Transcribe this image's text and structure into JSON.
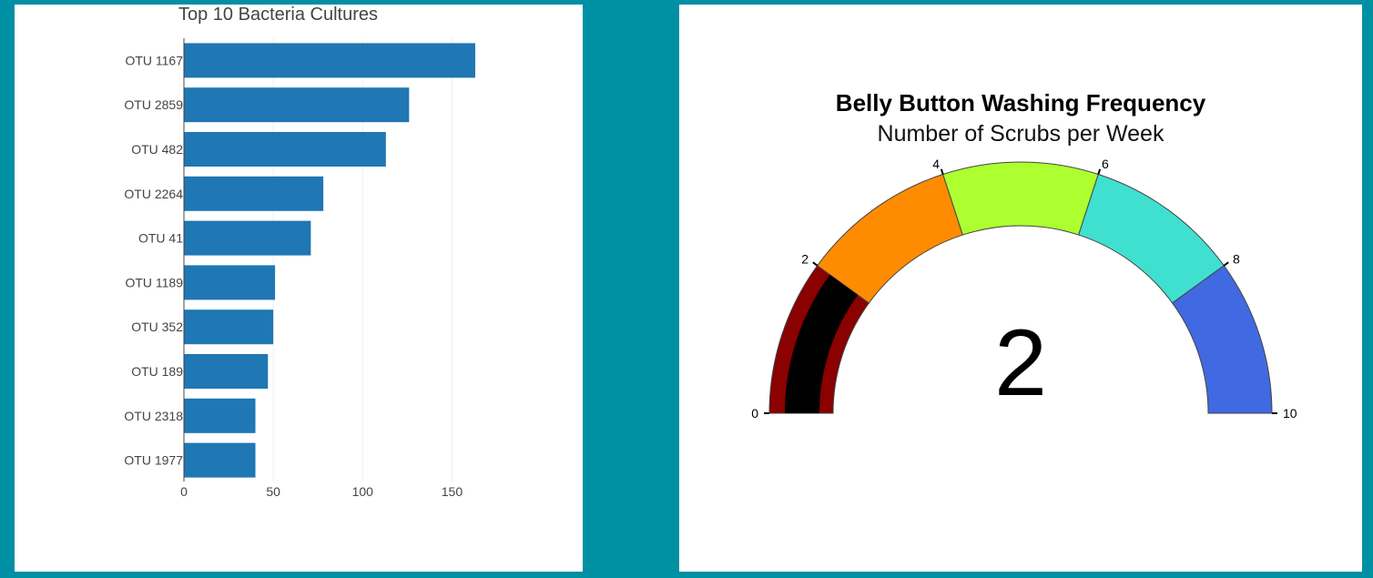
{
  "chart_data": [
    {
      "type": "bar",
      "orientation": "horizontal",
      "title": "Top 10 Bacteria Cultures",
      "categories": [
        "OTU 1167",
        "OTU 2859",
        "OTU 482",
        "OTU 2264",
        "OTU 41",
        "OTU 1189",
        "OTU 352",
        "OTU 189",
        "OTU 2318",
        "OTU 1977"
      ],
      "values": [
        163,
        126,
        113,
        78,
        71,
        51,
        50,
        47,
        40,
        40
      ],
      "xlim": [
        0,
        200
      ],
      "xticks": [
        0,
        50,
        100,
        150
      ],
      "xtick_labels": [
        "0",
        "50",
        "100",
        "150"
      ],
      "grid": true,
      "bar_color": "#1f77b4"
    },
    {
      "type": "gauge",
      "title": "Belly Button Washing Frequency",
      "subtitle": "Number of Scrubs per Week",
      "value": 2,
      "value_label": "2",
      "range": [
        0,
        10
      ],
      "ticks": [
        0,
        2,
        4,
        6,
        8,
        10
      ],
      "tick_labels": [
        "0",
        "2",
        "4",
        "6",
        "8",
        "10"
      ],
      "steps": [
        {
          "range": [
            0,
            2
          ],
          "color": "#8b0000"
        },
        {
          "range": [
            2,
            4
          ],
          "color": "#ff8c00"
        },
        {
          "range": [
            4,
            6
          ],
          "color": "#adff2f"
        },
        {
          "range": [
            6,
            8
          ],
          "color": "#40e0d0"
        },
        {
          "range": [
            8,
            10
          ],
          "color": "#4169e1"
        }
      ],
      "bar_color": "#000000"
    }
  ]
}
